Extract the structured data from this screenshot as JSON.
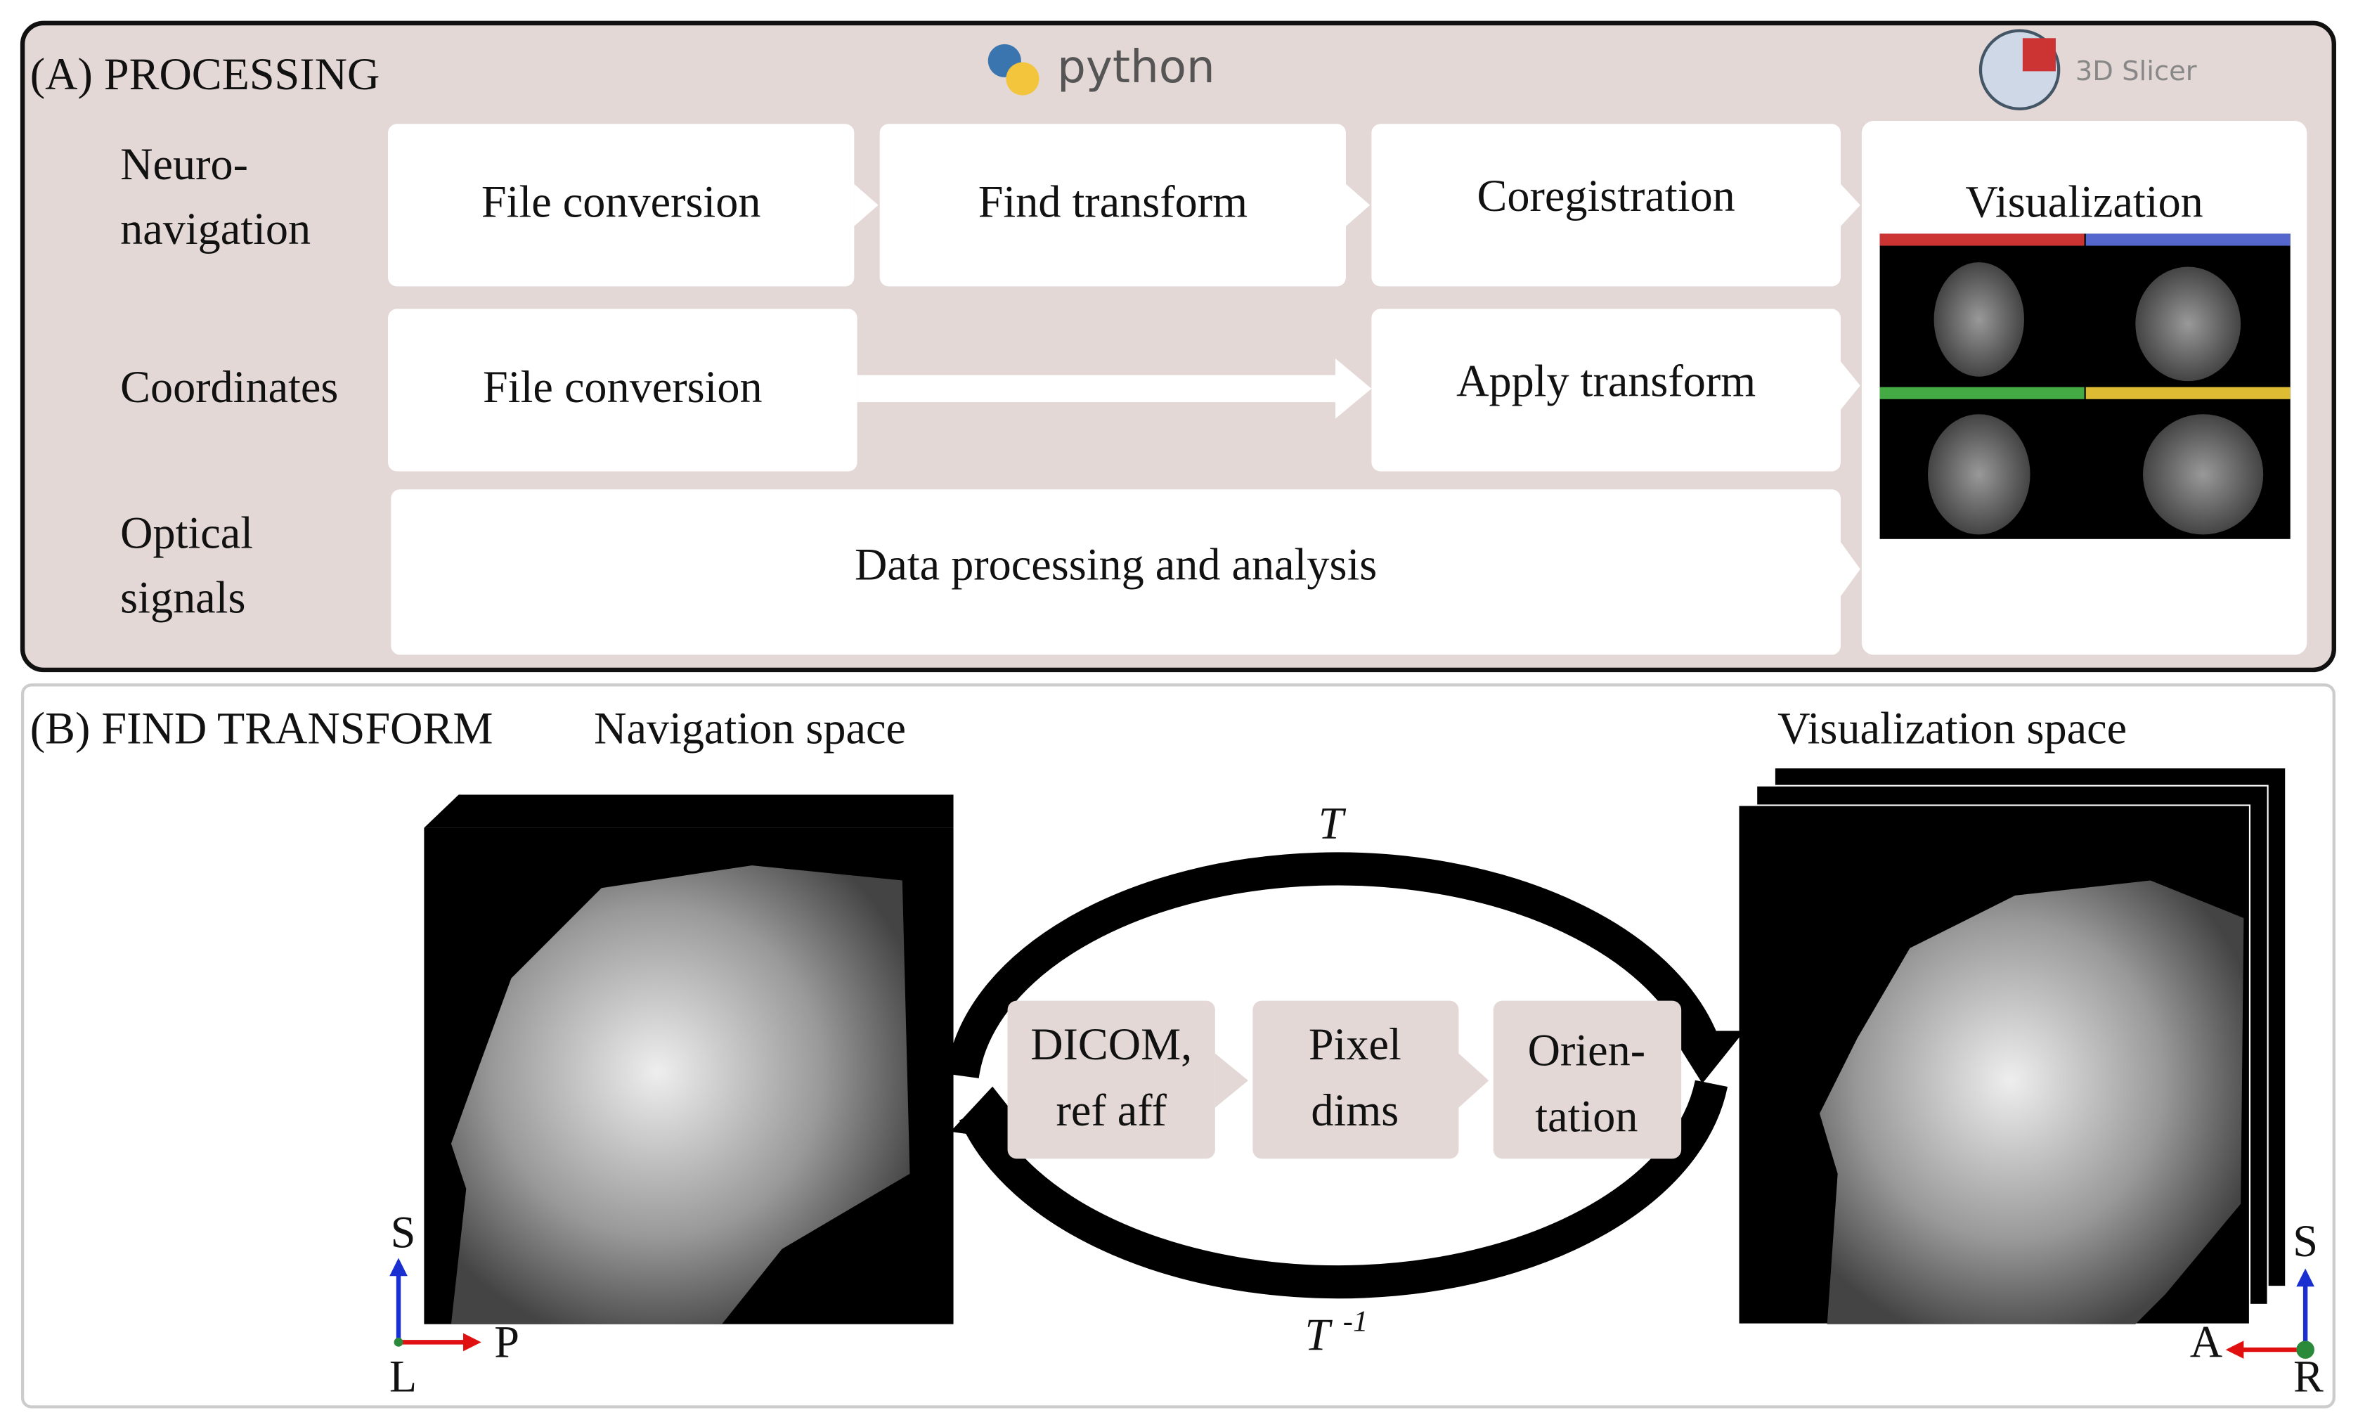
{
  "panel_a": {
    "title": "(A) PROCESSING",
    "logos": [
      "python",
      "3D Slicer"
    ],
    "rows": [
      {
        "label": [
          "Neuro-",
          "navigation"
        ],
        "steps": [
          "File conversion",
          "Find transform",
          "Coregistration"
        ]
      },
      {
        "label": [
          "Coordinates"
        ],
        "steps": [
          "File conversion",
          "Apply transform"
        ]
      },
      {
        "label": [
          "Optical",
          "signals"
        ],
        "steps": [
          "Data processing and analysis"
        ]
      }
    ],
    "visualization": "Visualization"
  },
  "panel_b": {
    "title": "(B) FIND TRANSFORM",
    "left_space": "Navigation space",
    "right_space": "Visualization space",
    "forward": "T",
    "inverse": {
      "base": "T",
      "exponent": "-1"
    },
    "steps": [
      [
        "DICOM,",
        "ref aff"
      ],
      [
        "Pixel",
        "dims"
      ],
      [
        "Orien-",
        "tation"
      ]
    ],
    "left_axes": {
      "up": "S",
      "right": "P",
      "origin": "L"
    },
    "right_axes": {
      "up": "S",
      "left": "A",
      "origin": "R"
    }
  }
}
